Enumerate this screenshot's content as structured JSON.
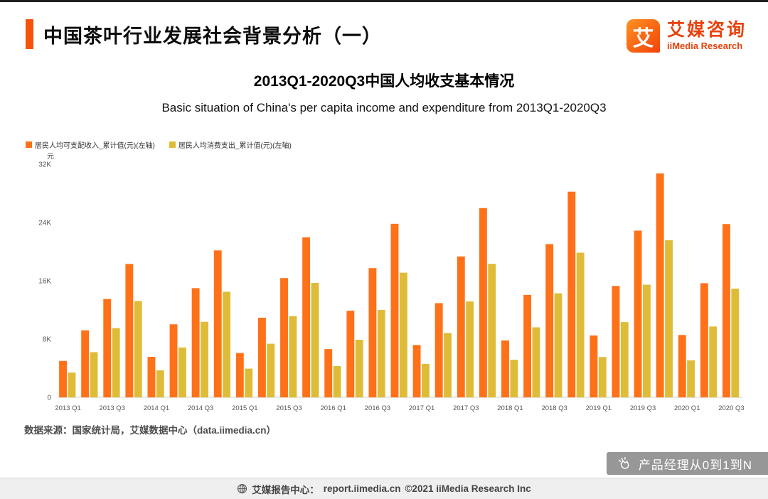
{
  "header": {
    "title": "中国茶叶行业发展社会背景分析（一）",
    "logo": {
      "icon_text": "艾",
      "brand_cn": "艾媒咨询",
      "brand_en": "iiMedia Research"
    }
  },
  "chart": {
    "title_cn": "2013Q1-2020Q3中国人均收支基本情况",
    "title_en": "Basic situation of China's per capita income and expenditure from 2013Q1-2020Q3",
    "legend": [
      {
        "label": "居民人均可支配收入_累计值(元)(左轴)",
        "color": "#FF7119"
      },
      {
        "label": "居民人均消费支出_累计值(元)(左轴)",
        "color": "#DFBC38"
      }
    ]
  },
  "chart_data": {
    "type": "bar",
    "title": "2013Q1-2020Q3中国人均收支基本情况",
    "ylabel": "元",
    "ylim": [
      0,
      32000
    ],
    "yticks": [
      0,
      8000,
      16000,
      24000,
      32000
    ],
    "ytick_labels": [
      "0",
      "8K",
      "16K",
      "24K",
      "32K"
    ],
    "grid": false,
    "legend_position": "top-left",
    "x_label_every": 2,
    "categories": [
      "2013 Q1",
      "2013 Q2",
      "2013 Q3",
      "2013 Q4",
      "2014 Q1",
      "2014 Q2",
      "2014 Q3",
      "2014 Q4",
      "2015 Q1",
      "2015 Q2",
      "2015 Q3",
      "2015 Q4",
      "2016 Q1",
      "2016 Q2",
      "2016 Q3",
      "2016 Q4",
      "2017 Q1",
      "2017 Q2",
      "2017 Q3",
      "2017 Q4",
      "2018 Q1",
      "2018 Q2",
      "2018 Q3",
      "2018 Q4",
      "2019 Q1",
      "2019 Q2",
      "2019 Q3",
      "2019 Q4",
      "2020 Q1",
      "2020 Q2",
      "2020 Q3"
    ],
    "series": [
      {
        "name": "居民人均可支配收入_累计值(元)(左轴)",
        "color": "#FF7119",
        "values": [
          5000,
          9200,
          13500,
          18311,
          5562,
          10025,
          14986,
          20167,
          6087,
          10931,
          16367,
          21966,
          6619,
          11886,
          17735,
          23821,
          7184,
          12932,
          19342,
          25974,
          7815,
          14063,
          21035,
          28228,
          8493,
          15294,
          22882,
          30733,
          8561,
          15666,
          23781
        ]
      },
      {
        "name": "居民人均消费支出_累计值(元)(左轴)",
        "color": "#DFBC38",
        "values": [
          3400,
          6200,
          9500,
          13220,
          3710,
          6846,
          10374,
          14491,
          3943,
          7358,
          11149,
          15712,
          4295,
          7902,
          11994,
          17111,
          4600,
          8834,
          13162,
          18322,
          5162,
          9609,
          14281,
          19853,
          5538,
          10330,
          15464,
          21559,
          5082,
          9718,
          14923
        ]
      }
    ]
  },
  "source": "数据来源：国家统计局，艾媒数据中心（data.iimedia.cn）",
  "watermark": "产品经理从0到1到N",
  "footer": {
    "center_label": "艾媒报告中心：",
    "link": "report.iimedia.cn",
    "copyright": "©2021  iiMedia Research  Inc"
  }
}
